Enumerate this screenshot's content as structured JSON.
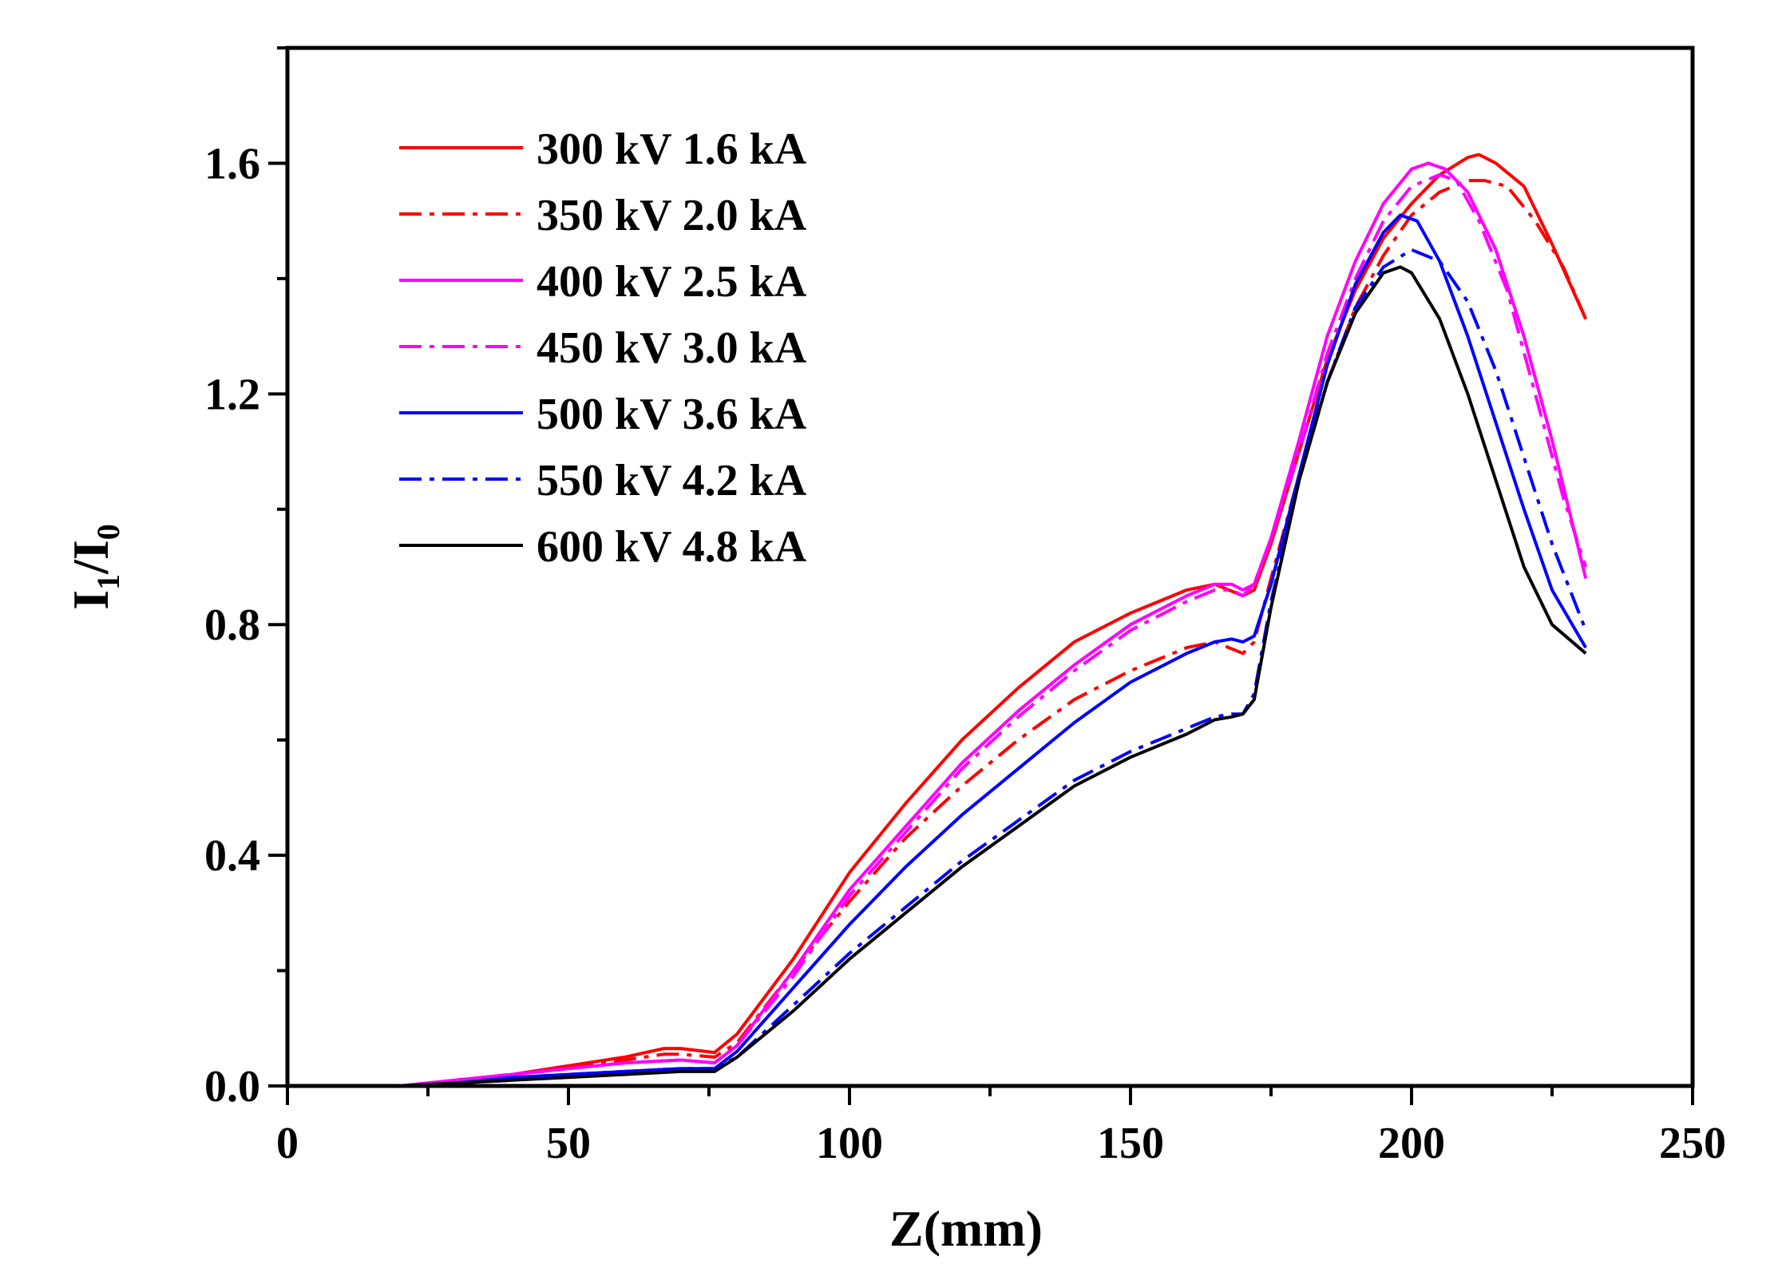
{
  "chart_data": {
    "type": "line",
    "title": "",
    "xlabel": "Z(mm)",
    "ylabel": "I",
    "ylabel_sub1": "1",
    "ylabel_sep": "/I",
    "ylabel_sub2": "0",
    "xlim": [
      0,
      250
    ],
    "ylim": [
      0.0,
      1.8
    ],
    "xticks": [
      "0",
      "50",
      "100",
      "150",
      "200",
      "250"
    ],
    "yticks": [
      "0.0",
      "0.4",
      "0.8",
      "1.2",
      "1.6"
    ],
    "grid": false,
    "legend_position": "top-left",
    "series": [
      {
        "name": "300 kV 1.6 kA",
        "color": "#ff0000",
        "dash": "solid",
        "points": [
          [
            20,
            0
          ],
          [
            30,
            0.01
          ],
          [
            40,
            0.02
          ],
          [
            50,
            0.035
          ],
          [
            60,
            0.05
          ],
          [
            67,
            0.065
          ],
          [
            70,
            0.065
          ],
          [
            76,
            0.058
          ],
          [
            80,
            0.09
          ],
          [
            90,
            0.22
          ],
          [
            100,
            0.37
          ],
          [
            110,
            0.49
          ],
          [
            120,
            0.6
          ],
          [
            130,
            0.69
          ],
          [
            140,
            0.77
          ],
          [
            150,
            0.82
          ],
          [
            160,
            0.86
          ],
          [
            165,
            0.87
          ],
          [
            170,
            0.85
          ],
          [
            172,
            0.86
          ],
          [
            175,
            0.94
          ],
          [
            180,
            1.1
          ],
          [
            185,
            1.26
          ],
          [
            190,
            1.38
          ],
          [
            195,
            1.47
          ],
          [
            200,
            1.53
          ],
          [
            205,
            1.58
          ],
          [
            210,
            1.61
          ],
          [
            212,
            1.615
          ],
          [
            215,
            1.6
          ],
          [
            220,
            1.56
          ],
          [
            225,
            1.46
          ],
          [
            231,
            1.33
          ]
        ]
      },
      {
        "name": "350 kV 2.0 kA",
        "color": "#ff0000",
        "dash": "dashdot",
        "points": [
          [
            20,
            0
          ],
          [
            30,
            0.01
          ],
          [
            40,
            0.02
          ],
          [
            50,
            0.03
          ],
          [
            60,
            0.045
          ],
          [
            67,
            0.055
          ],
          [
            70,
            0.055
          ],
          [
            76,
            0.05
          ],
          [
            80,
            0.075
          ],
          [
            90,
            0.2
          ],
          [
            100,
            0.32
          ],
          [
            110,
            0.43
          ],
          [
            120,
            0.52
          ],
          [
            130,
            0.6
          ],
          [
            140,
            0.67
          ],
          [
            150,
            0.72
          ],
          [
            160,
            0.76
          ],
          [
            165,
            0.77
          ],
          [
            170,
            0.75
          ],
          [
            172,
            0.77
          ],
          [
            175,
            0.88
          ],
          [
            180,
            1.06
          ],
          [
            185,
            1.22
          ],
          [
            190,
            1.35
          ],
          [
            195,
            1.44
          ],
          [
            200,
            1.51
          ],
          [
            205,
            1.55
          ],
          [
            210,
            1.57
          ],
          [
            213,
            1.57
          ],
          [
            217,
            1.56
          ],
          [
            222,
            1.5
          ],
          [
            227,
            1.42
          ],
          [
            231,
            1.33
          ]
        ]
      },
      {
        "name": "400 kV 2.5 kA",
        "color": "#ff00ff",
        "dash": "solid",
        "points": [
          [
            20,
            0
          ],
          [
            30,
            0.01
          ],
          [
            40,
            0.02
          ],
          [
            50,
            0.03
          ],
          [
            60,
            0.04
          ],
          [
            70,
            0.045
          ],
          [
            76,
            0.04
          ],
          [
            80,
            0.07
          ],
          [
            90,
            0.2
          ],
          [
            100,
            0.34
          ],
          [
            110,
            0.45
          ],
          [
            120,
            0.56
          ],
          [
            130,
            0.65
          ],
          [
            140,
            0.73
          ],
          [
            150,
            0.8
          ],
          [
            160,
            0.85
          ],
          [
            165,
            0.87
          ],
          [
            168,
            0.87
          ],
          [
            170,
            0.86
          ],
          [
            172,
            0.87
          ],
          [
            175,
            0.95
          ],
          [
            180,
            1.12
          ],
          [
            185,
            1.3
          ],
          [
            190,
            1.43
          ],
          [
            195,
            1.53
          ],
          [
            200,
            1.59
          ],
          [
            203,
            1.6
          ],
          [
            206,
            1.59
          ],
          [
            210,
            1.55
          ],
          [
            215,
            1.45
          ],
          [
            220,
            1.3
          ],
          [
            225,
            1.12
          ],
          [
            231,
            0.88
          ]
        ]
      },
      {
        "name": "450 kV 3.0 kA",
        "color": "#ff00ff",
        "dash": "dashdot",
        "points": [
          [
            20,
            0
          ],
          [
            30,
            0.01
          ],
          [
            40,
            0.02
          ],
          [
            50,
            0.03
          ],
          [
            60,
            0.04
          ],
          [
            70,
            0.045
          ],
          [
            76,
            0.04
          ],
          [
            80,
            0.07
          ],
          [
            90,
            0.19
          ],
          [
            100,
            0.33
          ],
          [
            110,
            0.44
          ],
          [
            120,
            0.55
          ],
          [
            130,
            0.64
          ],
          [
            140,
            0.72
          ],
          [
            150,
            0.79
          ],
          [
            160,
            0.84
          ],
          [
            165,
            0.86
          ],
          [
            168,
            0.86
          ],
          [
            170,
            0.85
          ],
          [
            172,
            0.87
          ],
          [
            175,
            0.95
          ],
          [
            180,
            1.1
          ],
          [
            185,
            1.27
          ],
          [
            190,
            1.4
          ],
          [
            195,
            1.5
          ],
          [
            200,
            1.56
          ],
          [
            205,
            1.58
          ],
          [
            208,
            1.57
          ],
          [
            212,
            1.5
          ],
          [
            217,
            1.38
          ],
          [
            222,
            1.2
          ],
          [
            227,
            1.02
          ],
          [
            231,
            0.9
          ]
        ]
      },
      {
        "name": "500 kV 3.6 kA",
        "color": "#0000ff",
        "dash": "solid",
        "points": [
          [
            20,
            0
          ],
          [
            30,
            0.005
          ],
          [
            40,
            0.015
          ],
          [
            50,
            0.02
          ],
          [
            60,
            0.025
          ],
          [
            70,
            0.03
          ],
          [
            76,
            0.03
          ],
          [
            80,
            0.06
          ],
          [
            90,
            0.17
          ],
          [
            100,
            0.28
          ],
          [
            110,
            0.38
          ],
          [
            120,
            0.47
          ],
          [
            130,
            0.55
          ],
          [
            140,
            0.63
          ],
          [
            150,
            0.7
          ],
          [
            160,
            0.75
          ],
          [
            165,
            0.77
          ],
          [
            168,
            0.775
          ],
          [
            170,
            0.77
          ],
          [
            172,
            0.78
          ],
          [
            175,
            0.87
          ],
          [
            180,
            1.06
          ],
          [
            185,
            1.25
          ],
          [
            190,
            1.39
          ],
          [
            195,
            1.48
          ],
          [
            198,
            1.51
          ],
          [
            201,
            1.5
          ],
          [
            205,
            1.43
          ],
          [
            210,
            1.3
          ],
          [
            215,
            1.15
          ],
          [
            220,
            1.0
          ],
          [
            225,
            0.86
          ],
          [
            231,
            0.76
          ]
        ]
      },
      {
        "name": "550 kV 4.2 kA",
        "color": "#0000ff",
        "dash": "dashdot",
        "points": [
          [
            20,
            0
          ],
          [
            30,
            0.005
          ],
          [
            40,
            0.01
          ],
          [
            50,
            0.02
          ],
          [
            60,
            0.025
          ],
          [
            70,
            0.03
          ],
          [
            76,
            0.03
          ],
          [
            80,
            0.05
          ],
          [
            90,
            0.14
          ],
          [
            100,
            0.23
          ],
          [
            110,
            0.31
          ],
          [
            120,
            0.39
          ],
          [
            130,
            0.46
          ],
          [
            140,
            0.53
          ],
          [
            150,
            0.58
          ],
          [
            160,
            0.62
          ],
          [
            165,
            0.64
          ],
          [
            168,
            0.645
          ],
          [
            170,
            0.645
          ],
          [
            172,
            0.68
          ],
          [
            175,
            0.84
          ],
          [
            180,
            1.05
          ],
          [
            185,
            1.22
          ],
          [
            190,
            1.35
          ],
          [
            195,
            1.42
          ],
          [
            200,
            1.45
          ],
          [
            205,
            1.43
          ],
          [
            210,
            1.36
          ],
          [
            215,
            1.24
          ],
          [
            220,
            1.09
          ],
          [
            225,
            0.94
          ],
          [
            231,
            0.79
          ]
        ]
      },
      {
        "name": "600 kV 4.8 kA",
        "color": "#000000",
        "dash": "solid",
        "points": [
          [
            20,
            0
          ],
          [
            30,
            0.005
          ],
          [
            40,
            0.01
          ],
          [
            50,
            0.015
          ],
          [
            60,
            0.02
          ],
          [
            70,
            0.025
          ],
          [
            76,
            0.025
          ],
          [
            80,
            0.05
          ],
          [
            90,
            0.13
          ],
          [
            100,
            0.22
          ],
          [
            110,
            0.3
          ],
          [
            120,
            0.38
          ],
          [
            130,
            0.45
          ],
          [
            140,
            0.52
          ],
          [
            150,
            0.57
          ],
          [
            160,
            0.61
          ],
          [
            165,
            0.635
          ],
          [
            168,
            0.64
          ],
          [
            170,
            0.645
          ],
          [
            172,
            0.67
          ],
          [
            175,
            0.83
          ],
          [
            180,
            1.05
          ],
          [
            185,
            1.22
          ],
          [
            190,
            1.34
          ],
          [
            195,
            1.41
          ],
          [
            198,
            1.42
          ],
          [
            200,
            1.41
          ],
          [
            205,
            1.33
          ],
          [
            210,
            1.2
          ],
          [
            215,
            1.05
          ],
          [
            220,
            0.9
          ],
          [
            225,
            0.8
          ],
          [
            231,
            0.75
          ]
        ]
      }
    ]
  }
}
